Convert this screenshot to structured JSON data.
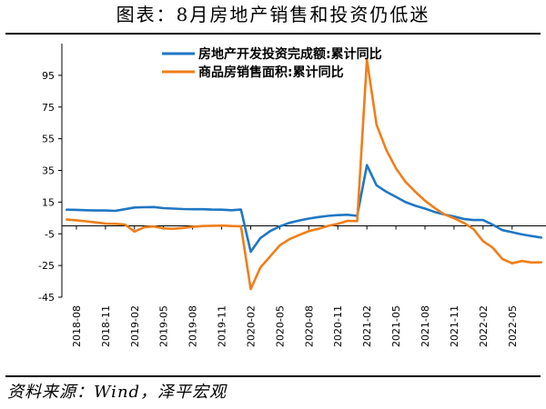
{
  "figure": {
    "title": "图表：8月房地产销售和投资仍低迷",
    "source": "资料来源：Wind，泽平宏观"
  },
  "chart_data": {
    "type": "line",
    "title": "",
    "xlabel": "",
    "ylabel": "",
    "ylim": [
      -45,
      115
    ],
    "yticks": [
      95,
      75,
      55,
      35,
      15,
      -5,
      -25,
      -45
    ],
    "x_tick_labels": [
      "2018-08",
      "2018-11",
      "2019-02",
      "2019-05",
      "2019-08",
      "2019-11",
      "2020-02",
      "2020-05",
      "2020-08",
      "2020-11",
      "2021-02",
      "2021-05",
      "2021-08",
      "2021-11",
      "2022-02",
      "2022-05"
    ],
    "legend_position": "top-center",
    "grid": false,
    "x": [
      "2018-07",
      "2018-08",
      "2018-09",
      "2018-10",
      "2018-11",
      "2018-12",
      "2019-01",
      "2019-02",
      "2019-03",
      "2019-04",
      "2019-05",
      "2019-06",
      "2019-07",
      "2019-08",
      "2019-09",
      "2019-10",
      "2019-11",
      "2019-12",
      "2020-01",
      "2020-02",
      "2020-03",
      "2020-04",
      "2020-05",
      "2020-06",
      "2020-07",
      "2020-08",
      "2020-09",
      "2020-10",
      "2020-11",
      "2020-12",
      "2021-01",
      "2021-02",
      "2021-03",
      "2021-04",
      "2021-05",
      "2021-06",
      "2021-07",
      "2021-08",
      "2021-09",
      "2021-10",
      "2021-11",
      "2021-12",
      "2022-01",
      "2022-02",
      "2022-03",
      "2022-04",
      "2022-05",
      "2022-06",
      "2022-07",
      "2022-08"
    ],
    "series": [
      {
        "name": "房地产开发投资完成额:累计同比",
        "color": "#1F77C4",
        "values": [
          10.2,
          10.1,
          9.9,
          9.7,
          9.7,
          9.5,
          10.5,
          11.6,
          11.8,
          11.9,
          11.2,
          10.9,
          10.6,
          10.5,
          10.5,
          10.3,
          10.2,
          9.9,
          10.3,
          -16.3,
          -7.7,
          -3.3,
          -0.3,
          1.9,
          3.4,
          4.6,
          5.6,
          6.3,
          6.8,
          7.0,
          6.3,
          38.3,
          25.6,
          21.6,
          18.3,
          15.0,
          12.7,
          10.9,
          8.8,
          7.2,
          6.0,
          4.4,
          3.7,
          3.7,
          0.7,
          -2.7,
          -4.0,
          -5.4,
          -6.4,
          -7.4
        ]
      },
      {
        "name": "商品房销售面积:累计同比",
        "color": "#F07E1A",
        "values": [
          4.0,
          3.5,
          2.9,
          2.2,
          1.4,
          1.3,
          0.9,
          -3.6,
          -0.9,
          -0.3,
          -1.6,
          -1.8,
          -1.3,
          -0.6,
          -0.1,
          0.1,
          0.2,
          -0.1,
          -0.2,
          -39.9,
          -26.3,
          -19.3,
          -12.3,
          -8.4,
          -5.8,
          -3.3,
          -1.8,
          0.0,
          1.3,
          3.2,
          3.0,
          104.9,
          63.8,
          48.1,
          36.3,
          27.7,
          21.5,
          15.9,
          11.3,
          7.3,
          4.8,
          1.9,
          -2.0,
          -9.6,
          -13.8,
          -20.9,
          -23.6,
          -22.2,
          -23.1,
          -23.0
        ]
      }
    ]
  }
}
